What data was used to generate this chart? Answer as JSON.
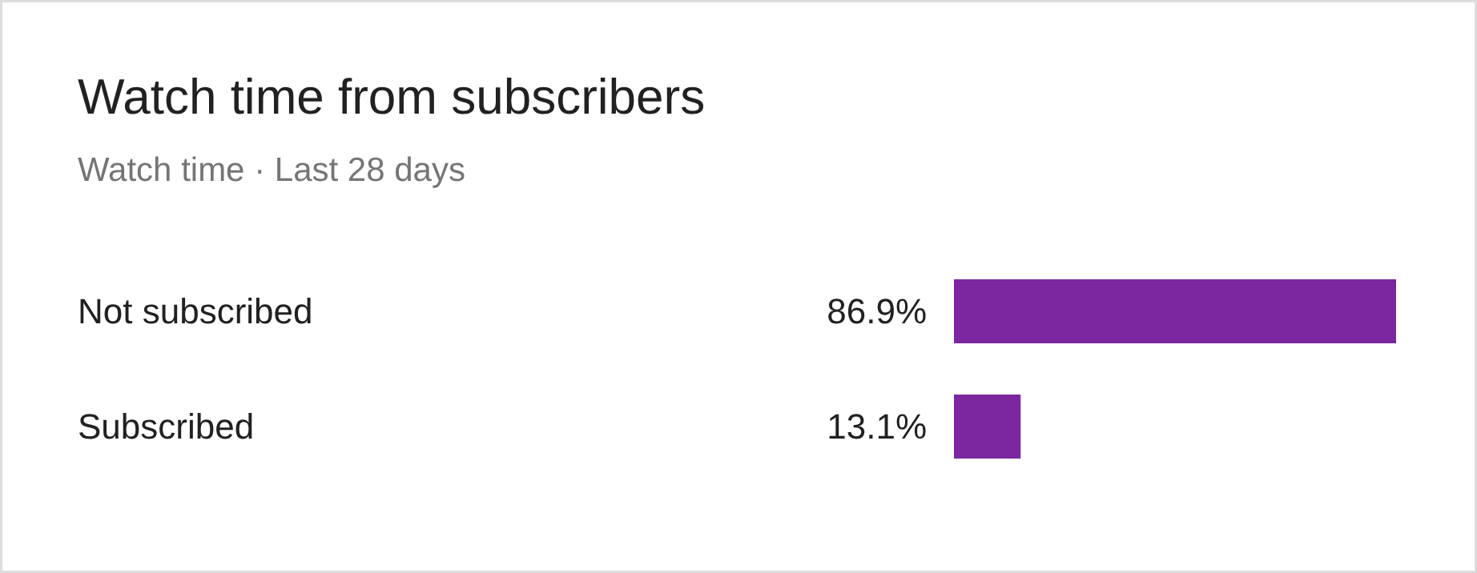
{
  "chart_data": {
    "type": "bar",
    "orientation": "horizontal",
    "title": "Watch time from subscribers",
    "subtitle": "Watch time · Last 28 days",
    "categories": [
      "Not subscribed",
      "Subscribed"
    ],
    "values": [
      86.9,
      13.1
    ],
    "value_labels": [
      "86.9%",
      "13.1%"
    ],
    "color": "#7b27a0",
    "grid": false
  }
}
